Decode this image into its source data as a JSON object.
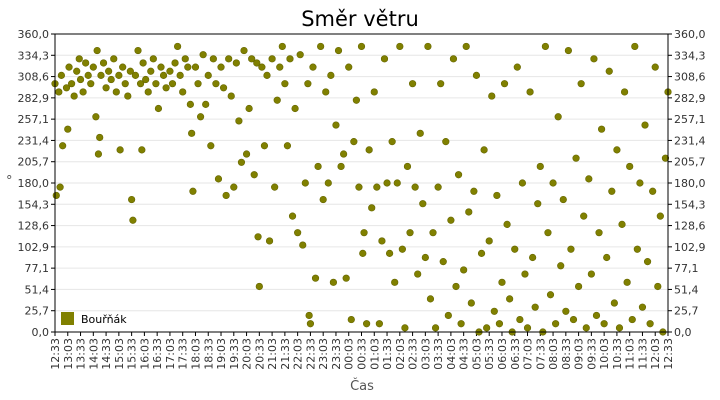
{
  "chart_data": {
    "type": "scatter",
    "title": "Směr větru",
    "xlabel": "Čas",
    "ylabel": "°",
    "ylim": [
      0,
      360
    ],
    "y_ticks": [
      "0,0",
      "25,7",
      "51,4",
      "77,1",
      "102,9",
      "128,6",
      "154,3",
      "180,0",
      "205,7",
      "231,4",
      "257,1",
      "282,9",
      "308,6",
      "334,3",
      "360,0"
    ],
    "x_ticks": [
      "12:33",
      "13:03",
      "13:33",
      "14:03",
      "14:33",
      "15:03",
      "15:33",
      "16:03",
      "16:33",
      "17:03",
      "17:33",
      "18:03",
      "18:33",
      "19:03",
      "19:33",
      "20:03",
      "20:33",
      "21:03",
      "21:33",
      "22:03",
      "22:33",
      "23:03",
      "23:33",
      "00:03",
      "00:33",
      "01:03",
      "01:33",
      "02:03",
      "02:33",
      "03:03",
      "03:33",
      "04:03",
      "04:33",
      "05:03",
      "05:33",
      "06:03",
      "06:33",
      "07:03",
      "07:33",
      "08:03",
      "08:33",
      "09:03",
      "09:33",
      "10:03",
      "10:33",
      "11:03",
      "11:33",
      "12:03",
      "12:33"
    ],
    "grid": "horizontal",
    "legend_position": "bottom-left",
    "series": [
      {
        "name": "Bouřňák",
        "color": "#808000",
        "points": [
          [
            0.0,
            300
          ],
          [
            0.1,
            165
          ],
          [
            0.3,
            290
          ],
          [
            0.4,
            175
          ],
          [
            0.5,
            310
          ],
          [
            0.6,
            225
          ],
          [
            0.9,
            295
          ],
          [
            1.0,
            245
          ],
          [
            1.1,
            320
          ],
          [
            1.3,
            300
          ],
          [
            1.5,
            285
          ],
          [
            1.7,
            315
          ],
          [
            1.9,
            330
          ],
          [
            2.0,
            305
          ],
          [
            2.2,
            290
          ],
          [
            2.4,
            325
          ],
          [
            2.6,
            310
          ],
          [
            2.8,
            300
          ],
          [
            3.0,
            320
          ],
          [
            3.2,
            260
          ],
          [
            3.3,
            340
          ],
          [
            3.4,
            215
          ],
          [
            3.5,
            235
          ],
          [
            3.6,
            310
          ],
          [
            3.8,
            325
          ],
          [
            4.0,
            295
          ],
          [
            4.2,
            315
          ],
          [
            4.4,
            305
          ],
          [
            4.6,
            330
          ],
          [
            4.8,
            290
          ],
          [
            5.0,
            310
          ],
          [
            5.1,
            220
          ],
          [
            5.3,
            320
          ],
          [
            5.5,
            300
          ],
          [
            5.7,
            285
          ],
          [
            5.9,
            315
          ],
          [
            6.0,
            160
          ],
          [
            6.1,
            135
          ],
          [
            6.3,
            310
          ],
          [
            6.5,
            340
          ],
          [
            6.7,
            300
          ],
          [
            6.8,
            220
          ],
          [
            6.9,
            325
          ],
          [
            7.1,
            305
          ],
          [
            7.3,
            290
          ],
          [
            7.5,
            315
          ],
          [
            7.7,
            330
          ],
          [
            7.9,
            300
          ],
          [
            8.1,
            270
          ],
          [
            8.3,
            320
          ],
          [
            8.5,
            310
          ],
          [
            8.7,
            295
          ],
          [
            9.0,
            315
          ],
          [
            9.2,
            300
          ],
          [
            9.4,
            325
          ],
          [
            9.6,
            345
          ],
          [
            9.8,
            310
          ],
          [
            10.0,
            290
          ],
          [
            10.2,
            330
          ],
          [
            10.4,
            320
          ],
          [
            10.6,
            275
          ],
          [
            10.7,
            240
          ],
          [
            10.8,
            170
          ],
          [
            11.0,
            320
          ],
          [
            11.2,
            300
          ],
          [
            11.4,
            260
          ],
          [
            11.6,
            335
          ],
          [
            11.8,
            275
          ],
          [
            12.0,
            310
          ],
          [
            12.2,
            225
          ],
          [
            12.4,
            330
          ],
          [
            12.6,
            300
          ],
          [
            12.8,
            185
          ],
          [
            13.0,
            320
          ],
          [
            13.2,
            295
          ],
          [
            13.4,
            165
          ],
          [
            13.6,
            330
          ],
          [
            13.8,
            285
          ],
          [
            14.0,
            175
          ],
          [
            14.2,
            325
          ],
          [
            14.4,
            255
          ],
          [
            14.6,
            205
          ],
          [
            14.8,
            340
          ],
          [
            15.0,
            215
          ],
          [
            15.2,
            270
          ],
          [
            15.4,
            330
          ],
          [
            15.6,
            190
          ],
          [
            15.8,
            325
          ],
          [
            15.9,
            115
          ],
          [
            16.0,
            55
          ],
          [
            16.2,
            320
          ],
          [
            16.4,
            225
          ],
          [
            16.6,
            310
          ],
          [
            16.8,
            110
          ],
          [
            17.0,
            330
          ],
          [
            17.2,
            175
          ],
          [
            17.4,
            280
          ],
          [
            17.6,
            320
          ],
          [
            17.8,
            345
          ],
          [
            18.0,
            300
          ],
          [
            18.2,
            225
          ],
          [
            18.4,
            330
          ],
          [
            18.6,
            140
          ],
          [
            18.8,
            270
          ],
          [
            19.0,
            120
          ],
          [
            19.2,
            335
          ],
          [
            19.4,
            105
          ],
          [
            19.6,
            180
          ],
          [
            19.8,
            300
          ],
          [
            19.9,
            20
          ],
          [
            20.0,
            10
          ],
          [
            20.2,
            320
          ],
          [
            20.4,
            65
          ],
          [
            20.6,
            200
          ],
          [
            20.8,
            345
          ],
          [
            21.0,
            160
          ],
          [
            21.2,
            290
          ],
          [
            21.4,
            180
          ],
          [
            21.6,
            310
          ],
          [
            21.8,
            60
          ],
          [
            22.0,
            250
          ],
          [
            22.2,
            340
          ],
          [
            22.4,
            200
          ],
          [
            22.6,
            215
          ],
          [
            22.8,
            65
          ],
          [
            23.0,
            320
          ],
          [
            23.2,
            15
          ],
          [
            23.4,
            230
          ],
          [
            23.6,
            280
          ],
          [
            23.8,
            175
          ],
          [
            24.0,
            345
          ],
          [
            24.1,
            95
          ],
          [
            24.2,
            120
          ],
          [
            24.4,
            10
          ],
          [
            24.6,
            220
          ],
          [
            24.8,
            150
          ],
          [
            25.0,
            290
          ],
          [
            25.2,
            175
          ],
          [
            25.4,
            10
          ],
          [
            25.6,
            110
          ],
          [
            25.8,
            330
          ],
          [
            26.0,
            180
          ],
          [
            26.2,
            95
          ],
          [
            26.4,
            230
          ],
          [
            26.6,
            60
          ],
          [
            26.8,
            180
          ],
          [
            27.0,
            345
          ],
          [
            27.2,
            100
          ],
          [
            27.4,
            5
          ],
          [
            27.6,
            200
          ],
          [
            27.8,
            120
          ],
          [
            28.0,
            300
          ],
          [
            28.2,
            175
          ],
          [
            28.4,
            70
          ],
          [
            28.6,
            240
          ],
          [
            28.8,
            155
          ],
          [
            29.0,
            90
          ],
          [
            29.2,
            345
          ],
          [
            29.4,
            40
          ],
          [
            29.6,
            120
          ],
          [
            29.8,
            5
          ],
          [
            30.0,
            175
          ],
          [
            30.2,
            300
          ],
          [
            30.4,
            85
          ],
          [
            30.6,
            230
          ],
          [
            30.8,
            20
          ],
          [
            31.0,
            135
          ],
          [
            31.2,
            330
          ],
          [
            31.4,
            55
          ],
          [
            31.6,
            190
          ],
          [
            31.8,
            10
          ],
          [
            32.0,
            75
          ],
          [
            32.2,
            345
          ],
          [
            32.4,
            145
          ],
          [
            32.6,
            35
          ],
          [
            32.8,
            170
          ],
          [
            33.0,
            310
          ],
          [
            33.2,
            0
          ],
          [
            33.4,
            95
          ],
          [
            33.6,
            220
          ],
          [
            33.8,
            5
          ],
          [
            34.0,
            110
          ],
          [
            34.2,
            285
          ],
          [
            34.4,
            25
          ],
          [
            34.6,
            165
          ],
          [
            34.8,
            10
          ],
          [
            35.0,
            60
          ],
          [
            35.2,
            300
          ],
          [
            35.4,
            130
          ],
          [
            35.6,
            40
          ],
          [
            35.8,
            0
          ],
          [
            36.0,
            100
          ],
          [
            36.2,
            320
          ],
          [
            36.4,
            15
          ],
          [
            36.6,
            180
          ],
          [
            36.8,
            70
          ],
          [
            37.0,
            5
          ],
          [
            37.2,
            290
          ],
          [
            37.4,
            90
          ],
          [
            37.6,
            30
          ],
          [
            37.8,
            155
          ],
          [
            38.0,
            200
          ],
          [
            38.2,
            0
          ],
          [
            38.4,
            345
          ],
          [
            38.6,
            120
          ],
          [
            38.8,
            45
          ],
          [
            39.0,
            180
          ],
          [
            39.2,
            10
          ],
          [
            39.4,
            260
          ],
          [
            39.6,
            80
          ],
          [
            39.8,
            160
          ],
          [
            40.0,
            25
          ],
          [
            40.2,
            340
          ],
          [
            40.4,
            100
          ],
          [
            40.6,
            15
          ],
          [
            40.8,
            210
          ],
          [
            41.0,
            55
          ],
          [
            41.2,
            300
          ],
          [
            41.4,
            140
          ],
          [
            41.6,
            5
          ],
          [
            41.8,
            185
          ],
          [
            42.0,
            70
          ],
          [
            42.2,
            330
          ],
          [
            42.4,
            20
          ],
          [
            42.6,
            120
          ],
          [
            42.8,
            245
          ],
          [
            43.0,
            10
          ],
          [
            43.2,
            90
          ],
          [
            43.4,
            315
          ],
          [
            43.6,
            170
          ],
          [
            43.8,
            35
          ],
          [
            44.0,
            220
          ],
          [
            44.2,
            5
          ],
          [
            44.4,
            130
          ],
          [
            44.6,
            290
          ],
          [
            44.8,
            60
          ],
          [
            45.0,
            200
          ],
          [
            45.2,
            15
          ],
          [
            45.4,
            345
          ],
          [
            45.6,
            100
          ],
          [
            45.8,
            180
          ],
          [
            46.0,
            30
          ],
          [
            46.2,
            250
          ],
          [
            46.4,
            85
          ],
          [
            46.6,
            10
          ],
          [
            46.8,
            170
          ],
          [
            47.0,
            320
          ],
          [
            47.2,
            55
          ],
          [
            47.4,
            140
          ],
          [
            47.6,
            0
          ],
          [
            47.8,
            210
          ],
          [
            48.0,
            290
          ]
        ]
      }
    ]
  }
}
